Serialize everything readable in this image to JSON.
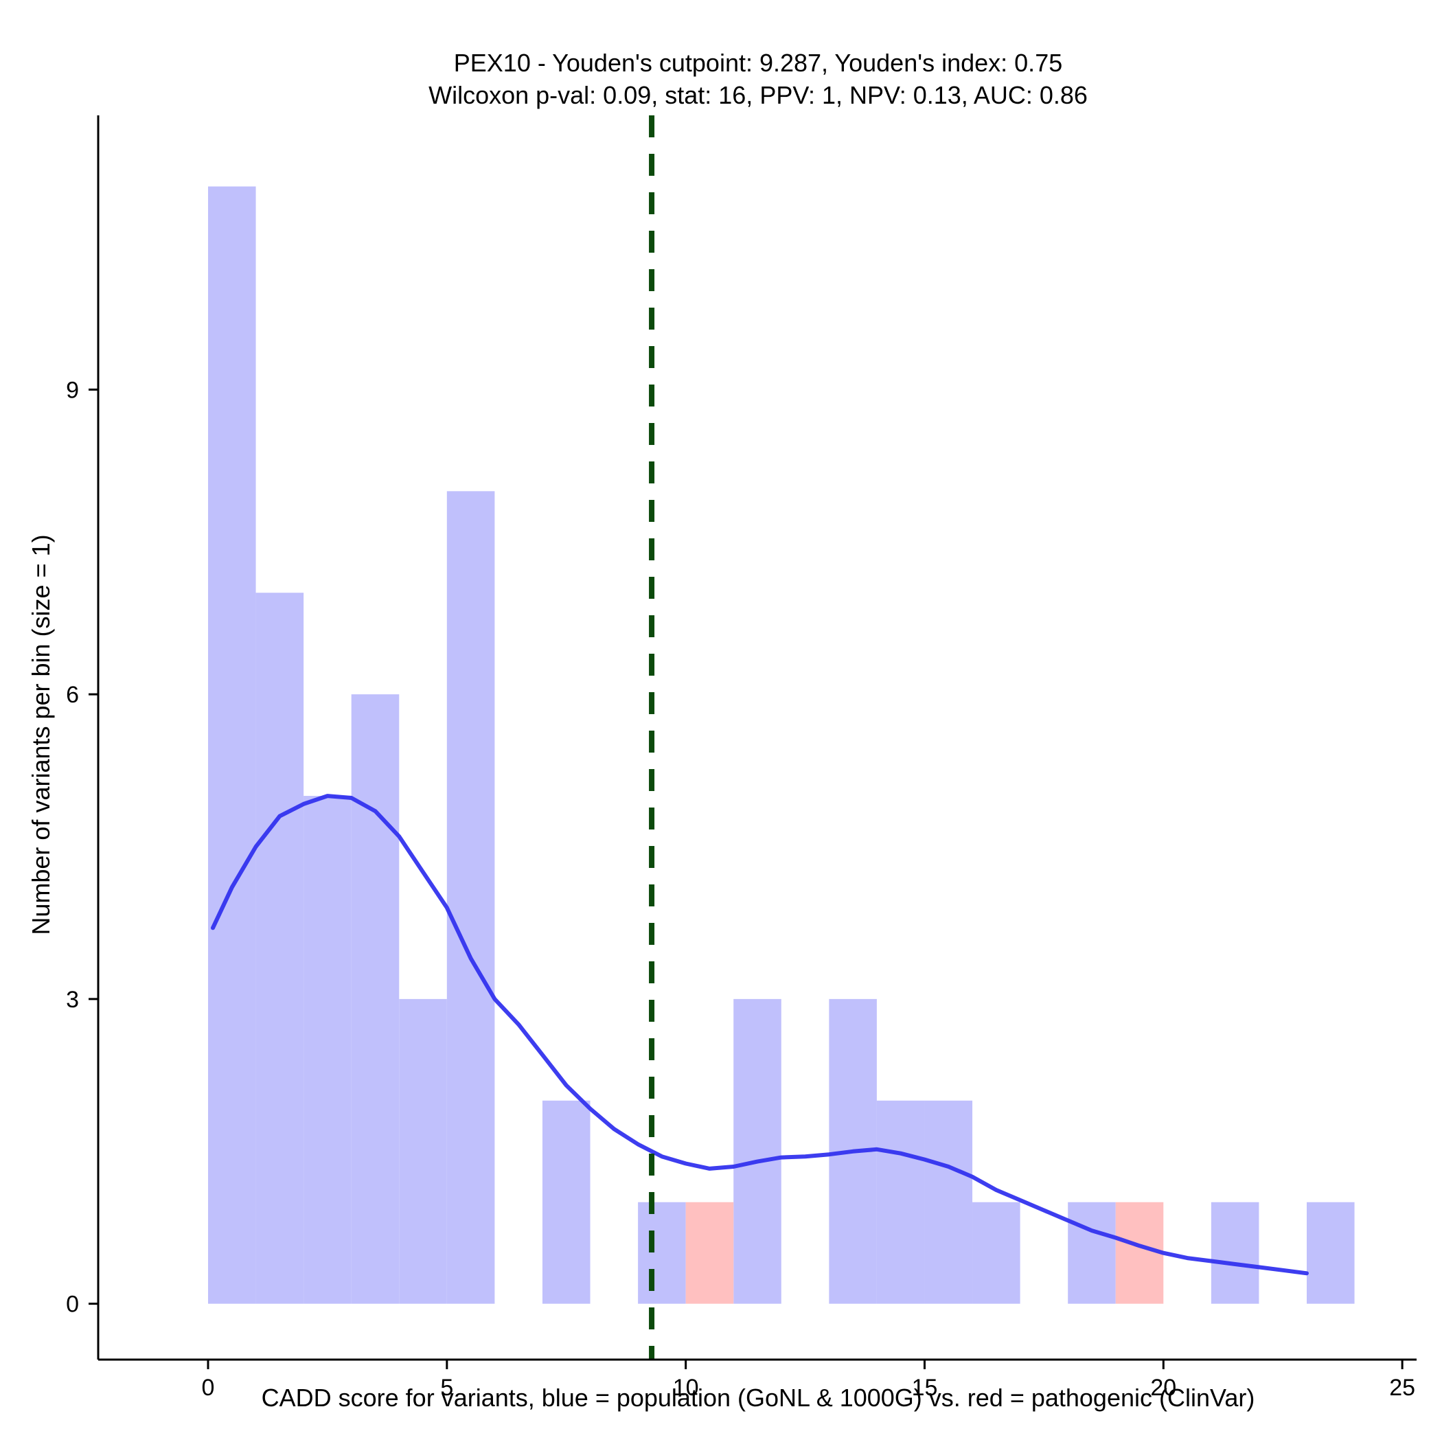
{
  "chart_data": {
    "type": "histogram",
    "title_lines": [
      "PEX10 - Youden's cutpoint: 9.287, Youden's index: 0.75",
      "Wilcoxon p-val: 0.09, stat: 16, PPV: 1, NPV: 0.13, AUC: 0.86"
    ],
    "xlabel": "CADD score for variants, blue = population (GoNL & 1000G) vs. red = pathogenic (ClinVar)",
    "ylabel": "Number of variants per bin (size = 1)",
    "xlim": [
      -2.3,
      25.3
    ],
    "ylim": [
      -0.55,
      11.7
    ],
    "xticks": [
      0,
      5,
      10,
      15,
      20,
      25
    ],
    "yticks": [
      0,
      3,
      6,
      9
    ],
    "bin_size": 1,
    "series": [
      {
        "name": "population (GoNL & 1000G)",
        "color": "#c0c0fc",
        "bins": [
          {
            "x0": 0,
            "count": 11
          },
          {
            "x0": 1,
            "count": 7
          },
          {
            "x0": 2,
            "count": 5
          },
          {
            "x0": 3,
            "count": 6
          },
          {
            "x0": 4,
            "count": 3
          },
          {
            "x0": 5,
            "count": 8
          },
          {
            "x0": 7,
            "count": 2
          },
          {
            "x0": 9,
            "count": 1
          },
          {
            "x0": 11,
            "count": 3
          },
          {
            "x0": 13,
            "count": 3
          },
          {
            "x0": 14,
            "count": 2
          },
          {
            "x0": 15,
            "count": 2
          },
          {
            "x0": 16,
            "count": 1
          },
          {
            "x0": 18,
            "count": 1
          },
          {
            "x0": 21,
            "count": 1
          },
          {
            "x0": 23,
            "count": 1
          }
        ]
      },
      {
        "name": "pathogenic (ClinVar)",
        "color": "#ffc0c0",
        "bins": [
          {
            "x0": 10,
            "count": 1
          },
          {
            "x0": 19,
            "count": 1
          }
        ]
      }
    ],
    "density_line": {
      "name": "population density",
      "color": "#3333ee",
      "x": [
        0.1,
        0.5,
        1.0,
        1.5,
        2.0,
        2.5,
        3.0,
        3.5,
        4.0,
        4.5,
        5.0,
        5.5,
        6.0,
        6.5,
        7.0,
        7.5,
        8.0,
        8.5,
        9.0,
        9.5,
        10.0,
        10.5,
        11.0,
        11.5,
        12.0,
        12.5,
        13.0,
        13.5,
        14.0,
        14.5,
        15.0,
        15.5,
        16.0,
        16.5,
        17.0,
        17.5,
        18.0,
        18.5,
        19.0,
        19.5,
        20.0,
        20.5,
        21.0,
        21.5,
        22.0,
        22.5,
        23.0
      ],
      "y": [
        3.7,
        4.1,
        4.5,
        4.8,
        4.92,
        5.0,
        4.98,
        4.85,
        4.6,
        4.25,
        3.9,
        3.4,
        3.0,
        2.75,
        2.45,
        2.15,
        1.92,
        1.72,
        1.57,
        1.45,
        1.38,
        1.33,
        1.35,
        1.4,
        1.44,
        1.45,
        1.47,
        1.5,
        1.52,
        1.48,
        1.42,
        1.35,
        1.25,
        1.12,
        1.02,
        0.92,
        0.82,
        0.72,
        0.65,
        0.57,
        0.5,
        0.45,
        0.42,
        0.39,
        0.36,
        0.33,
        0.3
      ]
    },
    "cutpoint": {
      "x": 9.287,
      "label": "Youden's cutpoint",
      "color": "#0c4a0c",
      "style": "dashed"
    },
    "grid": false,
    "legend": "none"
  }
}
